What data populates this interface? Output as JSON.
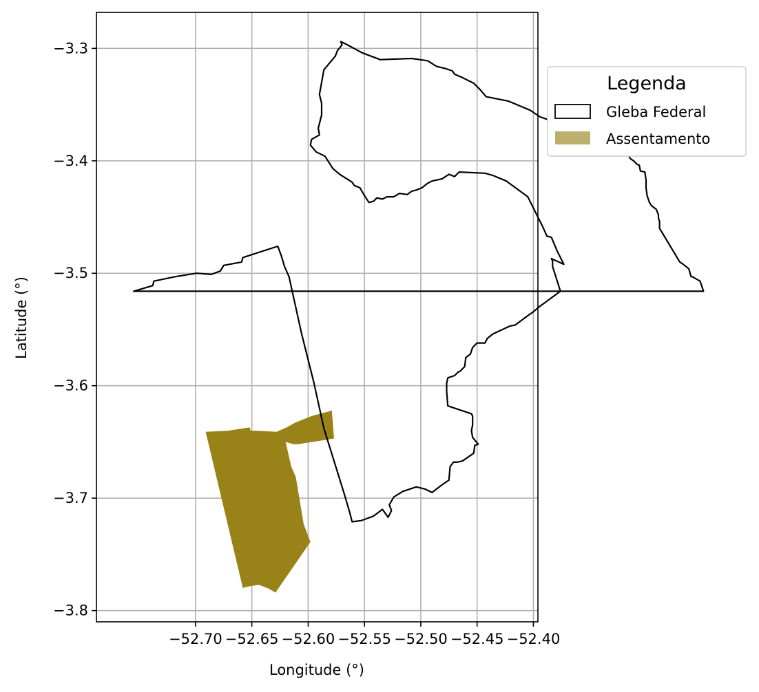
{
  "map": {
    "xlabel": "Longitude (°)",
    "ylabel": "Latitude (°)",
    "xlim": [
      -52.788,
      -52.396
    ],
    "ylim": [
      -3.81,
      -3.268
    ],
    "xticks": [
      -52.7,
      -52.65,
      -52.6,
      -52.55,
      -52.5,
      -52.45,
      -52.4
    ],
    "xtick_labels": [
      "−52.70",
      "−52.65",
      "−52.60",
      "−52.55",
      "−52.50",
      "−52.45",
      "−52.40"
    ],
    "yticks": [
      -3.3,
      -3.4,
      -3.5,
      -3.6,
      -3.7,
      -3.8
    ],
    "ytick_labels": [
      "−3.3",
      "−3.4",
      "−3.5",
      "−3.6",
      "−3.7",
      "−3.8"
    ],
    "grid": true,
    "legend": {
      "title": "Legenda",
      "placement": "outside right, upper",
      "items": [
        {
          "label": "Gleba Federal",
          "style": "outline",
          "edge_color": "#000000",
          "fill_color": "#ffffff"
        },
        {
          "label": "Assentamento",
          "style": "filled",
          "fill_color": "#bcb06e"
        }
      ]
    },
    "layers": {
      "gleba_federal": {
        "edge_color": "#000000",
        "fill": "none",
        "coords": [
          [
            -52.755,
            -3.516
          ],
          [
            -52.738,
            -3.511
          ],
          [
            -52.737,
            -3.507
          ],
          [
            -52.718,
            -3.503
          ],
          [
            -52.699,
            -3.5
          ],
          [
            -52.686,
            -3.501
          ],
          [
            -52.678,
            -3.498
          ],
          [
            -52.675,
            -3.493
          ],
          [
            -52.659,
            -3.49
          ],
          [
            -52.658,
            -3.486
          ],
          [
            -52.627,
            -3.476
          ],
          [
            -52.624,
            -3.484
          ],
          [
            -52.621,
            -3.494
          ],
          [
            -52.617,
            -3.503
          ],
          [
            -52.606,
            -3.553
          ],
          [
            -52.595,
            -3.597
          ],
          [
            -52.586,
            -3.638
          ],
          [
            -52.568,
            -3.696
          ],
          [
            -52.563,
            -3.713
          ],
          [
            -52.561,
            -3.721
          ],
          [
            -52.553,
            -3.72
          ],
          [
            -52.542,
            -3.716
          ],
          [
            -52.534,
            -3.71
          ],
          [
            -52.529,
            -3.717
          ],
          [
            -52.526,
            -3.711
          ],
          [
            -52.528,
            -3.706
          ],
          [
            -52.524,
            -3.699
          ],
          [
            -52.516,
            -3.694
          ],
          [
            -52.504,
            -3.69
          ],
          [
            -52.496,
            -3.692
          ],
          [
            -52.49,
            -3.695
          ],
          [
            -52.481,
            -3.688
          ],
          [
            -52.475,
            -3.684
          ],
          [
            -52.474,
            -3.672
          ],
          [
            -52.471,
            -3.668
          ],
          [
            -52.468,
            -3.668
          ],
          [
            -52.463,
            -3.667
          ],
          [
            -52.453,
            -3.66
          ],
          [
            -52.452,
            -3.653
          ],
          [
            -52.449,
            -3.652
          ],
          [
            -52.454,
            -3.646
          ],
          [
            -52.455,
            -3.64
          ],
          [
            -52.454,
            -3.635
          ],
          [
            -52.454,
            -3.627
          ],
          [
            -52.455,
            -3.625
          ],
          [
            -52.476,
            -3.618
          ],
          [
            -52.477,
            -3.605
          ],
          [
            -52.477,
            -3.598
          ],
          [
            -52.476,
            -3.593
          ],
          [
            -52.47,
            -3.591
          ],
          [
            -52.467,
            -3.588
          ],
          [
            -52.465,
            -3.587
          ],
          [
            -52.461,
            -3.583
          ],
          [
            -52.46,
            -3.575
          ],
          [
            -52.456,
            -3.572
          ],
          [
            -52.454,
            -3.566
          ],
          [
            -52.45,
            -3.562
          ],
          [
            -52.443,
            -3.562
          ],
          [
            -52.441,
            -3.558
          ],
          [
            -52.436,
            -3.554
          ],
          [
            -52.421,
            -3.547
          ],
          [
            -52.416,
            -3.546
          ],
          [
            -52.412,
            -3.543
          ],
          [
            -52.404,
            -3.537
          ],
          [
            -52.401,
            -3.535
          ],
          [
            -52.395,
            -3.53
          ],
          [
            -52.376,
            -3.516
          ],
          [
            -52.383,
            -3.494
          ],
          [
            -52.383,
            -3.489
          ],
          [
            -52.384,
            -3.487
          ],
          [
            -52.373,
            -3.492
          ],
          [
            -52.379,
            -3.48
          ],
          [
            -52.384,
            -3.468
          ],
          [
            -52.388,
            -3.467
          ],
          [
            -52.392,
            -3.458
          ],
          [
            -52.405,
            -3.432
          ],
          [
            -52.424,
            -3.418
          ],
          [
            -52.436,
            -3.413
          ],
          [
            -52.443,
            -3.411
          ],
          [
            -52.466,
            -3.41
          ],
          [
            -52.47,
            -3.414
          ],
          [
            -52.475,
            -3.412
          ],
          [
            -52.478,
            -3.414
          ],
          [
            -52.481,
            -3.416
          ],
          [
            -52.49,
            -3.418
          ],
          [
            -52.494,
            -3.42
          ],
          [
            -52.499,
            -3.424
          ],
          [
            -52.504,
            -3.426
          ],
          [
            -52.508,
            -3.427
          ],
          [
            -52.512,
            -3.43
          ],
          [
            -52.519,
            -3.429
          ],
          [
            -52.524,
            -3.432
          ],
          [
            -52.53,
            -3.432
          ],
          [
            -52.534,
            -3.434
          ],
          [
            -52.539,
            -3.433
          ],
          [
            -52.542,
            -3.436
          ],
          [
            -52.546,
            -3.437
          ],
          [
            -52.55,
            -3.431
          ],
          [
            -52.554,
            -3.424
          ],
          [
            -52.559,
            -3.422
          ],
          [
            -52.561,
            -3.419
          ],
          [
            -52.572,
            -3.412
          ],
          [
            -52.578,
            -3.407
          ],
          [
            -52.585,
            -3.396
          ],
          [
            -52.593,
            -3.392
          ],
          [
            -52.598,
            -3.386
          ],
          [
            -52.597,
            -3.381
          ],
          [
            -52.59,
            -3.377
          ],
          [
            -52.591,
            -3.371
          ],
          [
            -52.588,
            -3.359
          ],
          [
            -52.588,
            -3.349
          ],
          [
            -52.59,
            -3.341
          ],
          [
            -52.586,
            -3.319
          ],
          [
            -52.576,
            -3.307
          ],
          [
            -52.574,
            -3.302
          ],
          [
            -52.57,
            -3.297
          ],
          [
            -52.571,
            -3.294
          ],
          [
            -52.565,
            -3.297
          ],
          [
            -52.552,
            -3.304
          ],
          [
            -52.536,
            -3.31
          ],
          [
            -52.508,
            -3.309
          ],
          [
            -52.494,
            -3.311
          ],
          [
            -52.486,
            -3.316
          ],
          [
            -52.478,
            -3.318
          ],
          [
            -52.472,
            -3.32
          ],
          [
            -52.47,
            -3.323
          ],
          [
            -52.463,
            -3.326
          ],
          [
            -52.453,
            -3.331
          ],
          [
            -52.447,
            -3.337
          ],
          [
            -52.442,
            -3.343
          ],
          [
            -52.422,
            -3.347
          ],
          [
            -52.403,
            -3.355
          ],
          [
            -52.394,
            -3.361
          ],
          [
            -52.388,
            -3.363
          ],
          [
            -52.381,
            -3.366
          ],
          [
            -52.372,
            -3.369
          ],
          [
            -52.364,
            -3.376
          ],
          [
            -52.352,
            -3.38
          ],
          [
            -52.345,
            -3.382
          ],
          [
            -52.33,
            -3.386
          ],
          [
            -52.318,
            -3.387
          ],
          [
            -52.317,
            -3.39
          ],
          [
            -52.316,
            -3.394
          ],
          [
            -52.314,
            -3.398
          ],
          [
            -52.311,
            -3.4
          ],
          [
            -52.308,
            -3.403
          ],
          [
            -52.306,
            -3.404
          ],
          [
            -52.305,
            -3.409
          ],
          [
            -52.301,
            -3.41
          ],
          [
            -52.3,
            -3.417
          ],
          [
            -52.3,
            -3.424
          ],
          [
            -52.299,
            -3.431
          ],
          [
            -52.297,
            -3.437
          ],
          [
            -52.295,
            -3.44
          ],
          [
            -52.291,
            -3.443
          ],
          [
            -52.289,
            -3.448
          ],
          [
            -52.289,
            -3.451
          ],
          [
            -52.288,
            -3.454
          ],
          [
            -52.288,
            -3.46
          ],
          [
            -52.285,
            -3.465
          ],
          [
            -52.27,
            -3.49
          ],
          [
            -52.267,
            -3.492
          ],
          [
            -52.262,
            -3.496
          ],
          [
            -52.26,
            -3.503
          ],
          [
            -52.259,
            -3.503
          ],
          [
            -52.252,
            -3.507
          ],
          [
            -52.249,
            -3.516
          ],
          [
            -52.255,
            -3.516
          ]
        ]
      },
      "assentamento": {
        "fill_color": "#998218",
        "coords": [
          [
            -52.691,
            -3.641
          ],
          [
            -52.671,
            -3.64
          ],
          [
            -52.652,
            -3.637
          ],
          [
            -52.651,
            -3.64
          ],
          [
            -52.647,
            -3.64
          ],
          [
            -52.628,
            -3.641
          ],
          [
            -52.619,
            -3.637
          ],
          [
            -52.612,
            -3.633
          ],
          [
            -52.597,
            -3.627
          ],
          [
            -52.582,
            -3.623
          ],
          [
            -52.579,
            -3.622
          ],
          [
            -52.577,
            -3.647
          ],
          [
            -52.609,
            -3.652
          ],
          [
            -52.613,
            -3.652
          ],
          [
            -52.62,
            -3.65
          ],
          [
            -52.615,
            -3.672
          ],
          [
            -52.611,
            -3.681
          ],
          [
            -52.604,
            -3.723
          ],
          [
            -52.598,
            -3.739
          ],
          [
            -52.629,
            -3.784
          ],
          [
            -52.636,
            -3.78
          ],
          [
            -52.644,
            -3.777
          ],
          [
            -52.655,
            -3.779
          ],
          [
            -52.658,
            -3.78
          ],
          [
            -52.691,
            -3.641
          ]
        ]
      }
    }
  }
}
